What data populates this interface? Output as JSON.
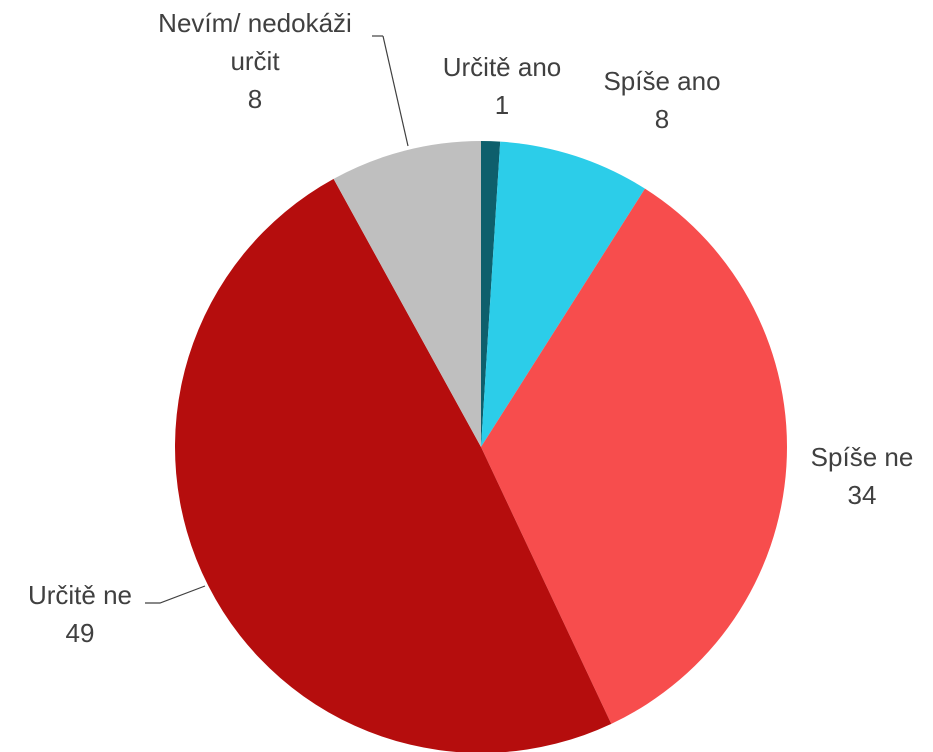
{
  "chart_data": {
    "type": "pie",
    "categories": [
      "Určitě ano",
      "Spíše ano",
      "Spíše ne",
      "Určitě ne",
      "Nevím/ nedokáži určit"
    ],
    "values": [
      1,
      8,
      34,
      49,
      8
    ],
    "colors": [
      "#0e5f6c",
      "#2ccde9",
      "#f74d4d",
      "#b50d0d",
      "#bfbfbf"
    ]
  }
}
